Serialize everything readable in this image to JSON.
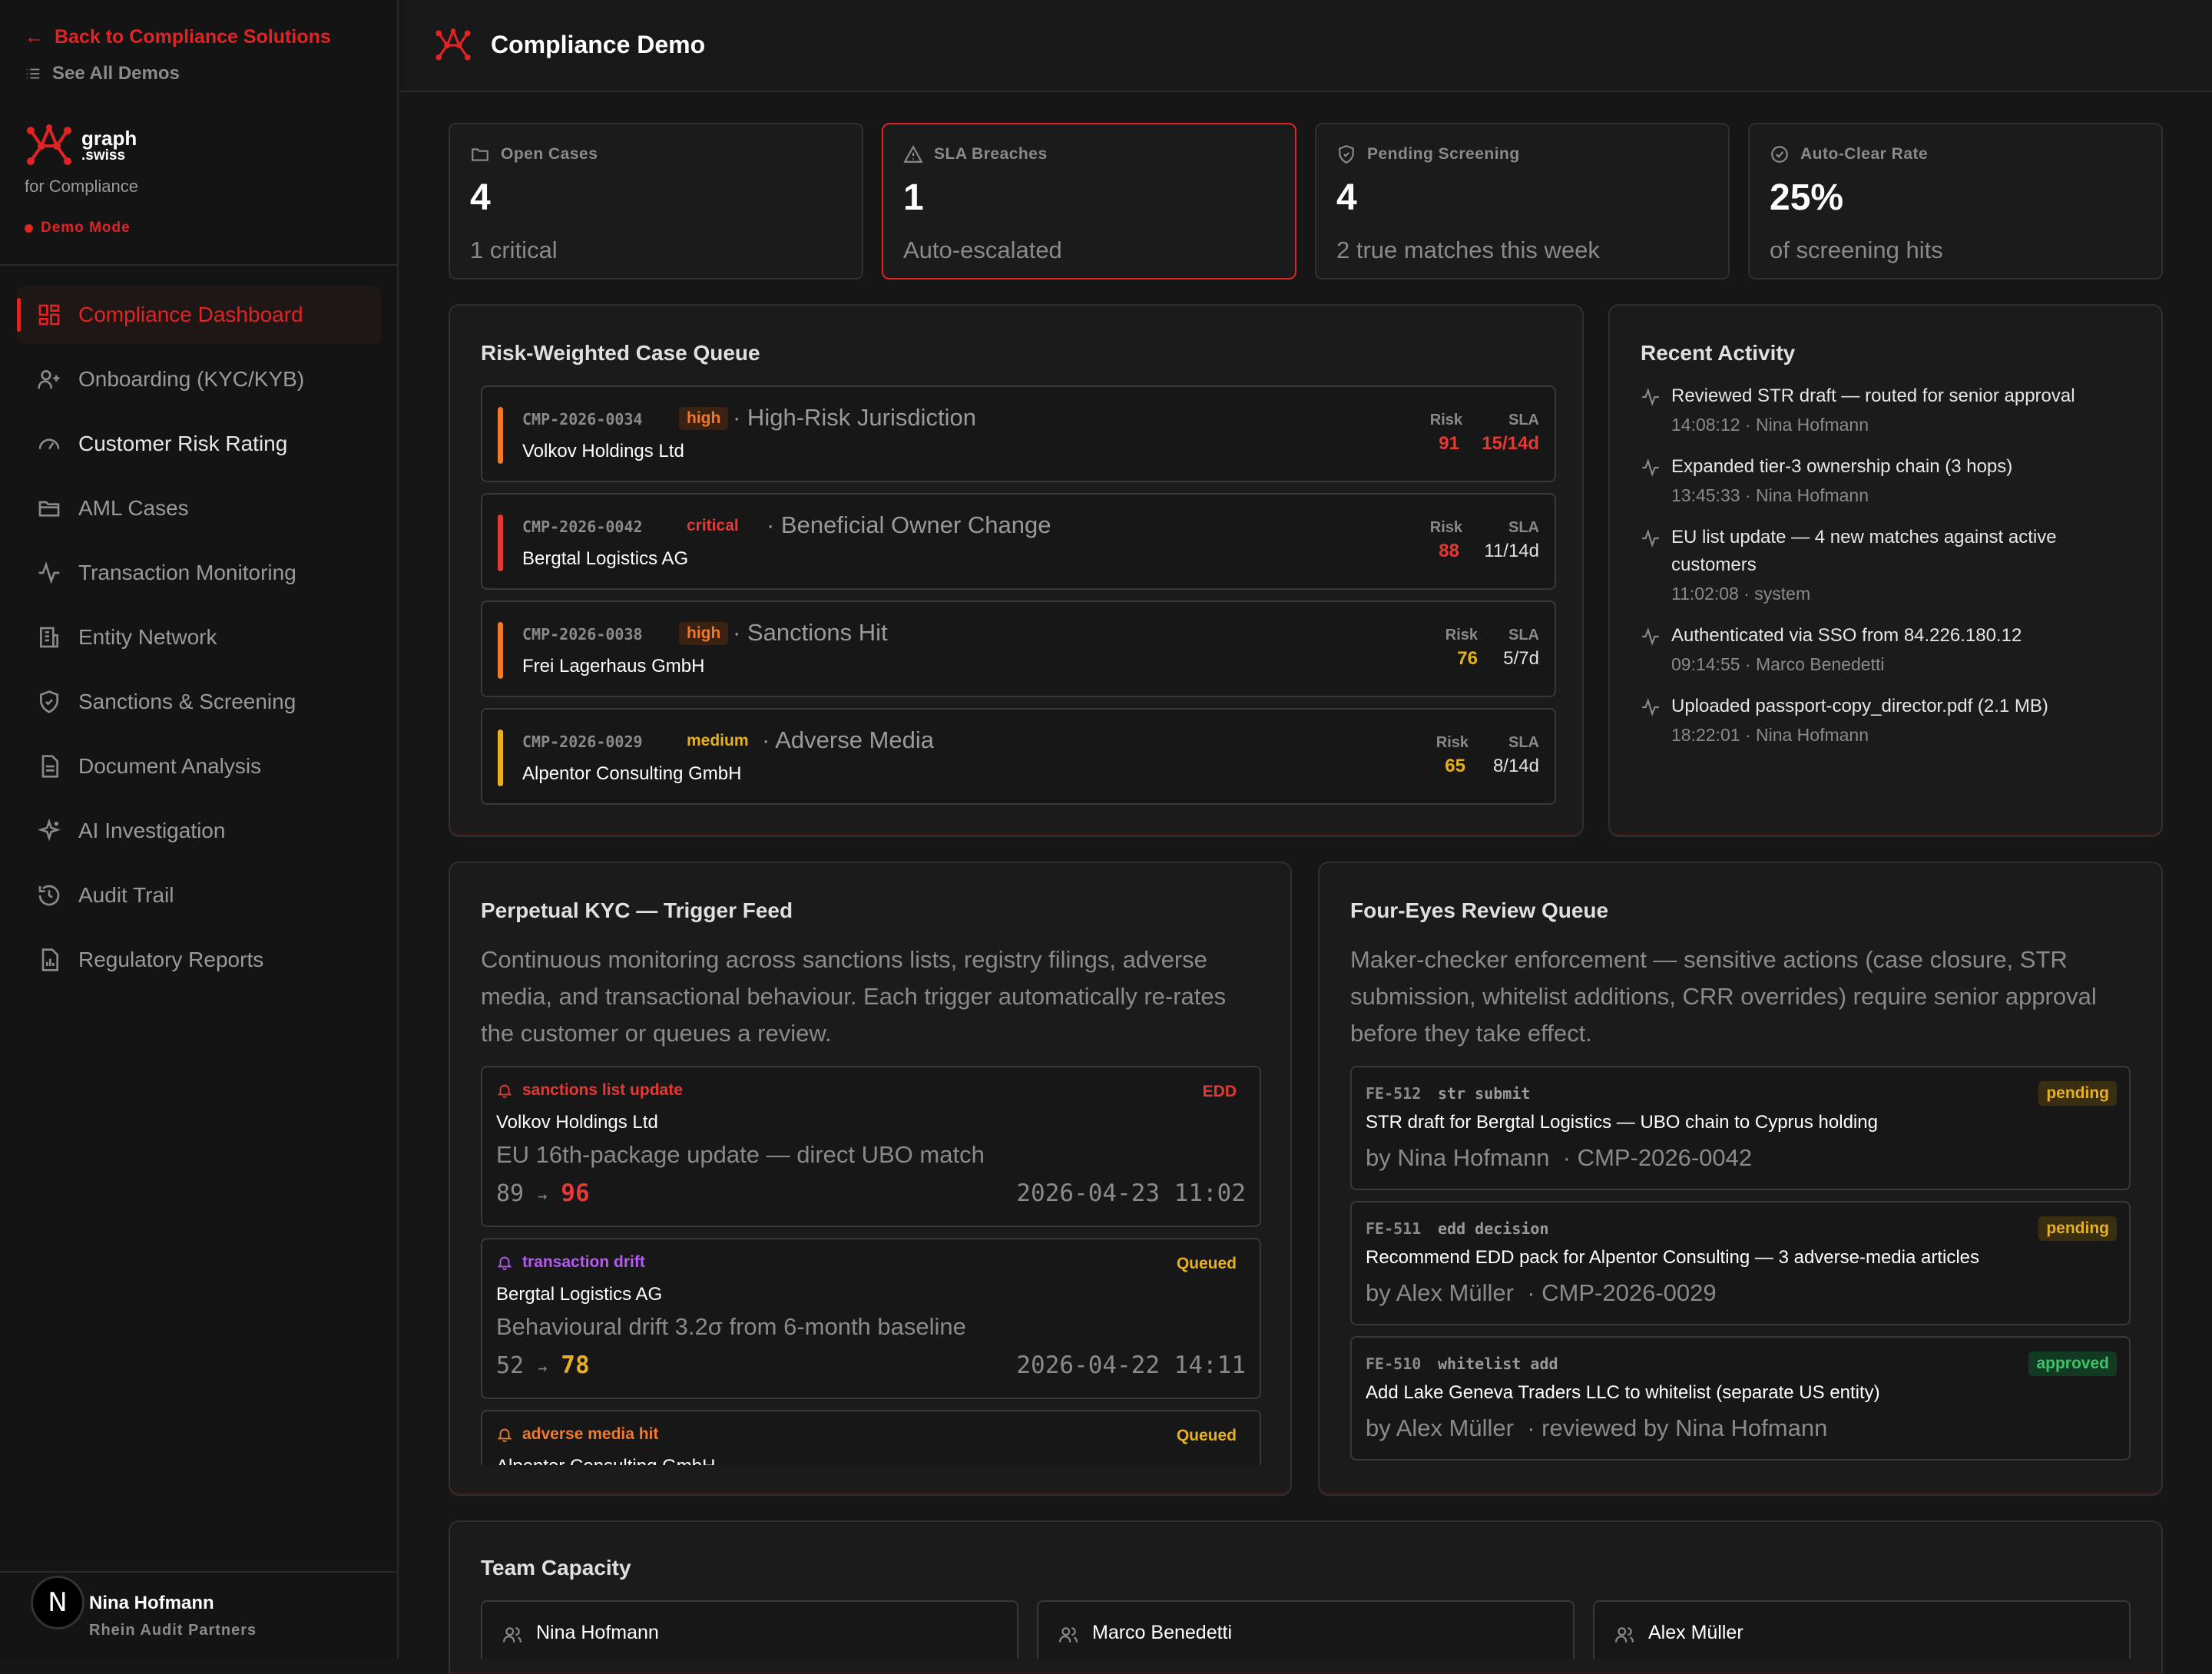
{
  "sidebar": {
    "back_link": "Back to Compliance Solutions",
    "all_demos": "See All Demos",
    "brand_name": "graph",
    "brand_suffix": ".swiss",
    "tagline": "for Compliance",
    "mode": "Demo Mode",
    "nav": [
      {
        "label": "Compliance Dashboard",
        "icon": "dashboard-icon",
        "active": true
      },
      {
        "label": "Onboarding (KYC/KYB)",
        "icon": "user-plus-icon"
      },
      {
        "label": "Customer Risk Rating",
        "icon": "gauge-icon"
      },
      {
        "label": "AML Cases",
        "icon": "folder-icon"
      },
      {
        "label": "Transaction Monitoring",
        "icon": "activity-icon"
      },
      {
        "label": "Entity Network",
        "icon": "building-icon"
      },
      {
        "label": "Sanctions & Screening",
        "icon": "shield-icon"
      },
      {
        "label": "Document Analysis",
        "icon": "document-icon"
      },
      {
        "label": "AI Investigation",
        "icon": "sparkles-icon"
      },
      {
        "label": "Audit Trail",
        "icon": "history-icon"
      },
      {
        "label": "Regulatory Reports",
        "icon": "report-icon"
      }
    ],
    "user": {
      "initial": "N",
      "name": "Nina Hofmann",
      "org": "Rhein Audit Partners"
    }
  },
  "header": {
    "title": "Compliance Demo"
  },
  "stats": [
    {
      "label": "Open Cases",
      "value": "4",
      "sub": "1 critical",
      "icon": "folder-icon"
    },
    {
      "label": "SLA Breaches",
      "value": "1",
      "sub": "Auto-escalated",
      "icon": "alert-icon"
    },
    {
      "label": "Pending Screening",
      "value": "4",
      "sub": "2 true matches this week",
      "icon": "shield-icon"
    },
    {
      "label": "Auto-Clear Rate",
      "value": "25%",
      "sub": "of screening hits",
      "icon": "check-circle-icon"
    }
  ],
  "case_queue": {
    "title": "Risk-Weighted Case Queue",
    "risk_label": "Risk",
    "sla_label": "SLA",
    "cases": [
      {
        "id": "CMP-2026-0034",
        "severity": "high",
        "type": "· High-Risk Jurisdiction",
        "name": "Volkov Holdings Ltd",
        "risk": "91",
        "sla": "15/14d"
      },
      {
        "id": "CMP-2026-0042",
        "severity": "critical",
        "type": "· Beneficial Owner Change",
        "name": "Bergtal Logistics AG",
        "risk": "88",
        "sla": "11/14d"
      },
      {
        "id": "CMP-2026-0038",
        "severity": "high",
        "type": "· Sanctions Hit",
        "name": "Frei Lagerhaus GmbH",
        "risk": "76",
        "sla": "5/7d"
      },
      {
        "id": "CMP-2026-0029",
        "severity": "medium",
        "type": "· Adverse Media",
        "name": "Alpentor Consulting GmbH",
        "risk": "65",
        "sla": "8/14d"
      }
    ]
  },
  "activity": {
    "title": "Recent Activity",
    "items": [
      {
        "text": "Reviewed STR draft — routed for senior approval",
        "meta": "14:08:12 · Nina Hofmann"
      },
      {
        "text": "Expanded tier-3 ownership chain (3 hops)",
        "meta": "13:45:33 · Nina Hofmann"
      },
      {
        "text": "EU list update — 4 new matches against active customers",
        "meta": "11:02:08 · system"
      },
      {
        "text": "Authenticated via SSO from 84.226.180.12",
        "meta": "09:14:55 · Marco Benedetti"
      },
      {
        "text": "Uploaded passport-copy_director.pdf (2.1 MB)",
        "meta": "18:22:01 · Nina Hofmann"
      }
    ]
  },
  "kyc_feed": {
    "title": "Perpetual KYC — Trigger Feed",
    "description": "Continuous monitoring across sanctions lists, registry filings, adverse media, and transactional behaviour. Each trigger automatically re-rates the customer or queues a review.",
    "triggers": [
      {
        "type": "sanctions list update",
        "status": "EDD",
        "name": "Volkov Holdings Ltd",
        "detail": "EU 16th-package update — direct UBO match",
        "from": "89",
        "arrow": "→",
        "to": "96",
        "time": "2026-04-23 11:02"
      },
      {
        "type": "transaction drift",
        "status": "Queued",
        "name": "Bergtal Logistics AG",
        "detail": "Behavioural drift 3.2σ from 6-month baseline",
        "from": "52",
        "arrow": "→",
        "to": "78",
        "time": "2026-04-22 14:11"
      },
      {
        "type": "adverse media hit",
        "status": "Queued",
        "name": "Alpentor Consulting GmbH",
        "detail": "",
        "from": "",
        "arrow": "",
        "to": "",
        "time": ""
      }
    ]
  },
  "four_eyes": {
    "title": "Four-Eyes Review Queue",
    "description": "Maker-checker enforcement — sensitive actions (case closure, STR submission, whitelist additions, CRR overrides) require senior approval before they take effect.",
    "items": [
      {
        "id": "FE-512",
        "type": "str submit",
        "status": "pending",
        "text": "STR draft for Bergtal Logistics — UBO chain to Cyprus holding",
        "by": "by Nina Hofmann",
        "ref": "· CMP-2026-0042"
      },
      {
        "id": "FE-511",
        "type": "edd decision",
        "status": "pending",
        "text": "Recommend EDD pack for Alpentor Consulting — 3 adverse-media articles",
        "by": "by Alex Müller",
        "ref": "· CMP-2026-0029"
      },
      {
        "id": "FE-510",
        "type": "whitelist add",
        "status": "approved",
        "text": "Add Lake Geneva Traders LLC to whitelist (separate US entity)",
        "by": "by Alex Müller",
        "ref": "· reviewed by Nina Hofmann"
      }
    ]
  },
  "team": {
    "title": "Team Capacity",
    "members": [
      "Nina Hofmann",
      "Marco Benedetti",
      "Alex Müller"
    ]
  },
  "colors": {
    "accent": "#e02424",
    "critical": "#e53935",
    "high": "#f07a2a",
    "medium": "#e6b020",
    "purple": "#b45cf0",
    "green": "#3cc46a"
  }
}
